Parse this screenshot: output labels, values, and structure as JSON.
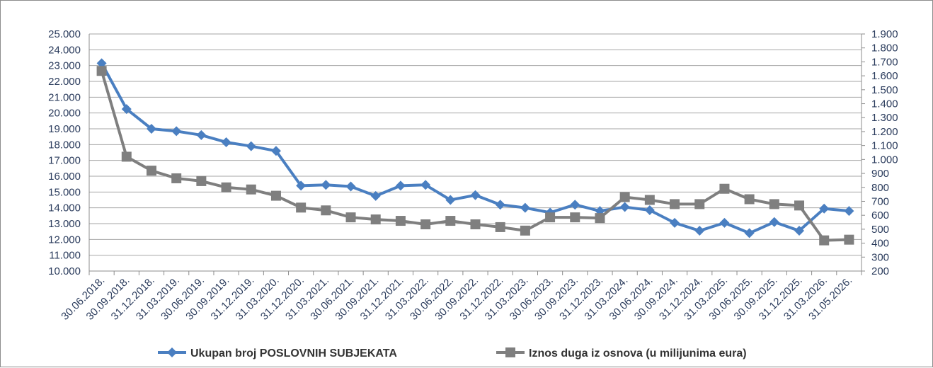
{
  "chart_data": {
    "type": "line",
    "title": "",
    "xlabel": "",
    "ylabel": "",
    "categories": [
      "30.06.2018.",
      "30.09.2018.",
      "31.12.2018.",
      "31.03.2019.",
      "30.06.2019.",
      "30.09.2019.",
      "31.12.2019.",
      "31.03.2020.",
      "31.12.2020.",
      "31.03.2021.",
      "30.06.2021.",
      "30.09.2021.",
      "31.12.2021.",
      "31.03.2022.",
      "30.06.2022.",
      "30.09.2022.",
      "31.12.2022.",
      "31.03.2023.",
      "30.06.2023.",
      "30.09.2023.",
      "31.12.2023.",
      "31.03.2024.",
      "30.06.2024.",
      "30.09.2024.",
      "31.12.2024.",
      "31.03.2025.",
      "30.06.2025.",
      "30.09.2025.",
      "31.12.2025.",
      "31.03.2026.",
      "31.05.2026."
    ],
    "ylim_left": [
      10000,
      25000
    ],
    "ylim_right": [
      200,
      1900
    ],
    "yticks_left": [
      "10.000",
      "11.000",
      "12.000",
      "13.000",
      "14.000",
      "15.000",
      "16.000",
      "17.000",
      "18.000",
      "19.000",
      "20.000",
      "21.000",
      "22.000",
      "23.000",
      "24.000",
      "25.000"
    ],
    "yticks_right": [
      "200",
      "300",
      "400",
      "500",
      "600",
      "700",
      "800",
      "900",
      "1.000",
      "1.100",
      "1.200",
      "1.300",
      "1.400",
      "1.500",
      "1.600",
      "1.700",
      "1.800",
      "1.900"
    ],
    "grid": true,
    "legend_position": "bottom",
    "series": [
      {
        "name": "Ukupan broj POSLOVNIH SUBJEKATA",
        "axis": "left",
        "color": "#4a7fc1",
        "marker": "diamond",
        "values": [
          23150,
          20250,
          19000,
          18850,
          18600,
          18150,
          17900,
          17600,
          15400,
          15450,
          15350,
          14750,
          15400,
          15450,
          14500,
          14800,
          14200,
          14000,
          13700,
          14200,
          13800,
          14050,
          13850,
          13050,
          12550,
          13050,
          12400,
          13100,
          12550,
          13950,
          13800
        ]
      },
      {
        "name": "Iznos duga iz osnova (u milijunima eura)",
        "axis": "right",
        "color": "#7f7f7f",
        "marker": "square",
        "values": [
          1635,
          1020,
          920,
          865,
          845,
          800,
          785,
          740,
          655,
          635,
          585,
          570,
          560,
          535,
          560,
          535,
          515,
          490,
          585,
          585,
          580,
          730,
          710,
          680,
          680,
          790,
          715,
          680,
          670,
          420,
          425
        ]
      }
    ]
  }
}
